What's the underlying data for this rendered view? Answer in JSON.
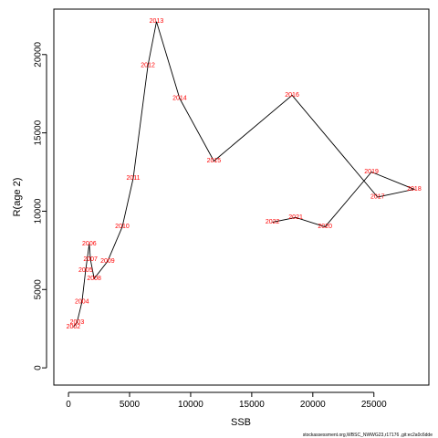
{
  "chart_data": {
    "type": "line",
    "title": "",
    "xlabel": "SSB",
    "ylabel": "R(age 2)",
    "xlim": [
      -1200,
      29500
    ],
    "ylim": [
      -1100,
      22900
    ],
    "x_ticks": [
      0,
      5000,
      10000,
      15000,
      20000,
      25000
    ],
    "y_ticks": [
      0,
      5000,
      10000,
      15000,
      20000
    ],
    "x_tick_labels": [
      "0",
      "5000",
      "10000",
      "15000",
      "20000",
      "25000"
    ],
    "y_tick_labels": [
      "0",
      "5000",
      "10000",
      "15000",
      "20000"
    ],
    "grid": false,
    "line_color": "#000000",
    "label_color": "#ff0000",
    "series": [
      {
        "points": [
          {
            "year": "2002",
            "x": 400,
            "y": 2600
          },
          {
            "year": "2003",
            "x": 700,
            "y": 2900
          },
          {
            "year": "2004",
            "x": 1100,
            "y": 4200
          },
          {
            "year": "2005",
            "x": 1400,
            "y": 6200
          },
          {
            "year": "2006",
            "x": 1700,
            "y": 7900
          },
          {
            "year": "2007",
            "x": 1800,
            "y": 6900
          },
          {
            "year": "2008",
            "x": 2100,
            "y": 5700
          },
          {
            "year": "2009",
            "x": 3200,
            "y": 6800
          },
          {
            "year": "2010",
            "x": 4400,
            "y": 9000
          },
          {
            "year": "2011",
            "x": 5300,
            "y": 12100
          },
          {
            "year": "2012",
            "x": 6500,
            "y": 19300
          },
          {
            "year": "2013",
            "x": 7200,
            "y": 22100
          },
          {
            "year": "2014",
            "x": 9100,
            "y": 17200
          },
          {
            "year": "2015",
            "x": 11900,
            "y": 13200
          },
          {
            "year": "2016",
            "x": 18300,
            "y": 17400
          },
          {
            "year": "2017",
            "x": 25300,
            "y": 10900
          },
          {
            "year": "2018",
            "x": 28300,
            "y": 11400
          },
          {
            "year": "2019",
            "x": 24800,
            "y": 12500
          },
          {
            "year": "2020",
            "x": 21000,
            "y": 9000
          },
          {
            "year": "2021",
            "x": 18600,
            "y": 9600
          },
          {
            "year": "2022",
            "x": 16700,
            "y": 9300
          }
        ]
      }
    ]
  },
  "footer": {
    "source": "stockassessment.org,WBSC_NWWG23,r17176 ,git:ec2a0c6dde"
  }
}
